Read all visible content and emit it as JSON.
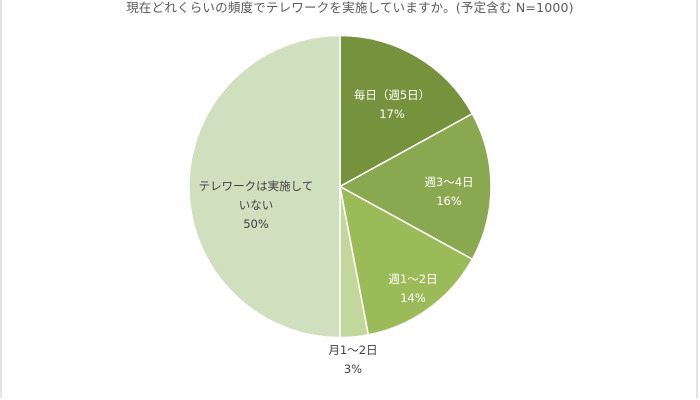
{
  "chart_data": {
    "type": "pie",
    "title": "現在どれくらいの頻度でテレワークを実施していますか。(予定含む N=1000)",
    "categories": [
      "毎日(週5日)",
      "週3〜4日",
      "週1〜2日",
      "月1〜2日",
      "テレワークは実施していない"
    ],
    "values": [
      17,
      16,
      14,
      3,
      50
    ],
    "value_labels": [
      "17%",
      "16%",
      "14%",
      "3%",
      "50%"
    ],
    "colors": [
      "#76923c",
      "#8aa84f",
      "#9bbb59",
      "#c3d69b",
      "#d0dfbe"
    ],
    "start_angle": "12 o'clock",
    "direction": "clockwise",
    "legend": "none (data labels on slices)"
  },
  "labels": [
    {
      "lines": [
        "毎日（週5日）",
        "17%"
      ]
    },
    {
      "lines": [
        "週3〜4日",
        "16%"
      ]
    },
    {
      "lines": [
        "週1〜2日",
        "14%"
      ]
    },
    {
      "lines": [
        "月1〜2日",
        "3%"
      ]
    },
    {
      "lines": [
        "テレワークは実施して",
        "いない",
        "50%"
      ]
    }
  ]
}
